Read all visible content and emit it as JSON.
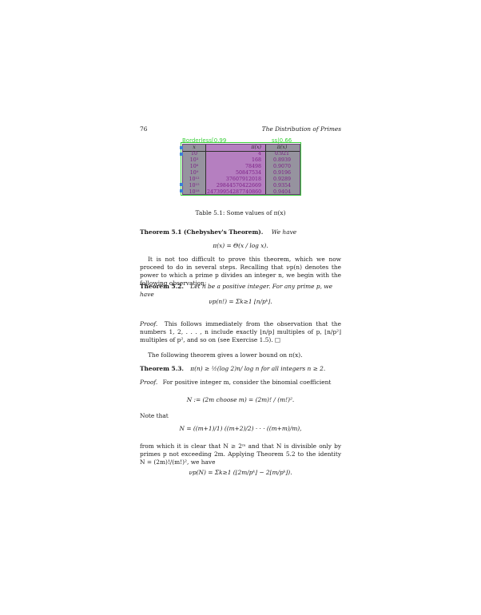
{
  "header": {
    "page_number": "76",
    "running_title": "The Distribution of Primes"
  },
  "table": {
    "tag_left": "Borderless[0.99",
    "tag_right": "ss|0.66",
    "headers": {
      "x": "x",
      "pi": "π(x)",
      "ratio": "π(x)"
    },
    "rows": [
      {
        "x": "10",
        "pi": "4",
        "ratio": "0.921"
      },
      {
        "x": "10³",
        "pi": "168",
        "ratio": "0.8939"
      },
      {
        "x": "10⁶",
        "pi": "78498",
        "ratio": "0.9070"
      },
      {
        "x": "10⁹",
        "pi": "50847534",
        "ratio": "0.9196"
      },
      {
        "x": "10¹²",
        "pi": "37607912018",
        "ratio": "0.9289"
      },
      {
        "x": "10¹⁵",
        "pi": "29844570422669",
        "ratio": "0.9354"
      },
      {
        "x": "10¹⁸",
        "pi": "24739954287740860",
        "ratio": "0.9404"
      }
    ],
    "caption": "Table 5.1: Some values of π(x)"
  },
  "theorem51": {
    "label": "Theorem 5.1 (Chebyshev's Theorem).",
    "lead": "We have",
    "formula": "π(x) = Θ(x / log x)."
  },
  "para1": "It is not too difficult to prove this theorem, which we now proceed to do in several steps. Recalling that νp(n) denotes the power to which a prime p divides an integer n, we begin with the following observation:",
  "theorem52": {
    "label": "Theorem 5.2.",
    "text": "Let n be a positive integer. For any prime p, we have",
    "formula": "νp(n!) = Σk≥1 ⌊n/pᵏ⌋."
  },
  "proof1": {
    "label": "Proof.",
    "text": "This follows immediately from the observation that the numbers 1, 2, . . . , n include exactly ⌊n/p⌋ multiples of p, ⌊n/p²⌋ multiples of p², and so on (see Exercise 1.5). □"
  },
  "para2": "The following theorem gives a lower bound on π(x).",
  "theorem53": {
    "label": "Theorem 5.3.",
    "text": "π(n) ≥ ½(log 2)n/ log n for all integers n ≥ 2."
  },
  "proof2": {
    "label": "Proof.",
    "text": "For positive integer m, consider the binomial coefficient",
    "formula": "N := (2m choose m) = (2m)! / (m!)²."
  },
  "note": {
    "lead": "Note that",
    "formula": "N = ((m+1)/1) ((m+2)/2) · · · ((m+m)/m),",
    "text": "from which it is clear that N ≥ 2ᵐ and that N is divisible only by primes p not exceeding 2m. Applying Theorem 5.2 to the identity N = (2m)!/(m!)², we have",
    "formula2": "νp(N) = Σk≥1 (⌊2m/pᵏ⌋ − 2⌊m/pᵏ⌋)."
  }
}
